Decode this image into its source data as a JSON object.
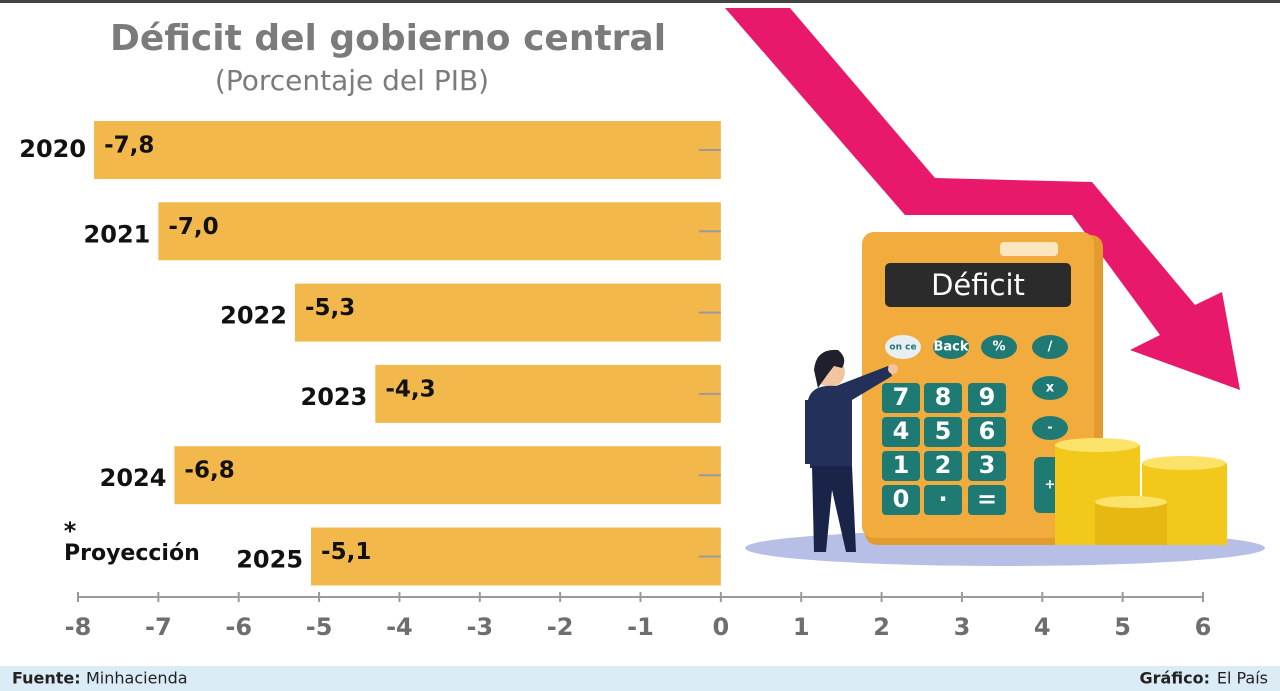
{
  "chart_data": {
    "type": "bar",
    "orientation": "horizontal",
    "title": "Déficit del gobierno central",
    "subtitle": "(Porcentaje del PIB)",
    "categories": [
      "2020",
      "2021",
      "2022",
      "2023",
      "2024",
      "2025"
    ],
    "values": [
      -7.8,
      -7.0,
      -5.3,
      -4.3,
      -6.8,
      -5.1
    ],
    "value_labels": [
      "-7,8",
      "-7,0",
      "-5,3",
      "-4,3",
      "-6,8",
      "-5,1"
    ],
    "color": "#f3b84c",
    "xlim": [
      -8,
      6
    ],
    "xticks": [
      -8,
      -7,
      -6,
      -5,
      -4,
      -3,
      -2,
      -1,
      0,
      1,
      2,
      3,
      4,
      5,
      6
    ],
    "annotation_mark": "*",
    "annotation": "Proyección",
    "source_label": "Fuente:",
    "source": "Minhacienda",
    "credit_label": "Gráfico:",
    "credit": "El País"
  },
  "illustration": {
    "display": "Déficit",
    "keys": [
      "on ce",
      "Back",
      "%",
      "/",
      "x",
      "-",
      "+",
      "7",
      "8",
      "9",
      "4",
      "5",
      "6",
      "1",
      "2",
      "3",
      "0",
      "·",
      "="
    ]
  }
}
